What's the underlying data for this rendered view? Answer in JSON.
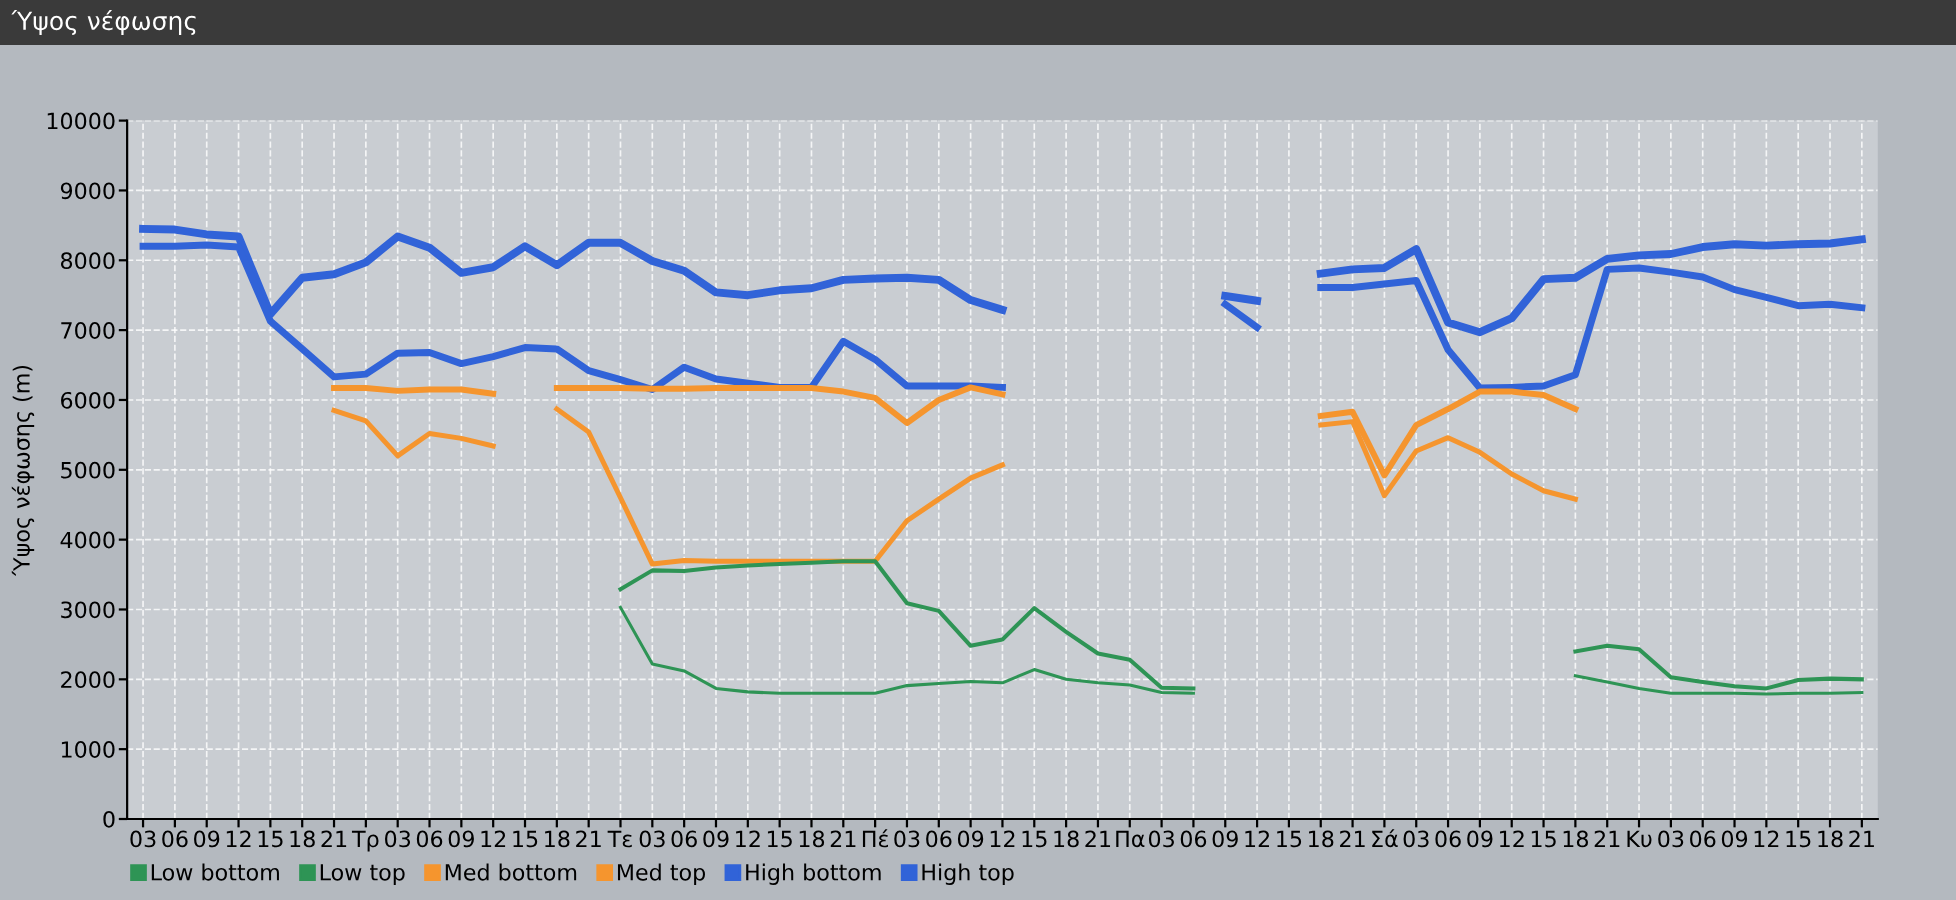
{
  "chart_data": {
    "type": "line",
    "title": "Ύψος νέφωσης",
    "ylabel": "Ύψος νέφωσης (m)",
    "categories": [
      "03",
      "06",
      "09",
      "12",
      "15",
      "18",
      "21",
      "Τρ",
      "03",
      "06",
      "09",
      "12",
      "15",
      "18",
      "21",
      "Τε",
      "03",
      "06",
      "09",
      "12",
      "15",
      "18",
      "21",
      "Πέ",
      "03",
      "06",
      "09",
      "12",
      "15",
      "18",
      "21",
      "Πα",
      "03",
      "06",
      "09",
      "12",
      "15",
      "18",
      "21",
      "Σά",
      "03",
      "06",
      "09",
      "12",
      "15",
      "18",
      "21",
      "Κυ",
      "03",
      "06",
      "09",
      "12",
      "15",
      "18",
      "21"
    ],
    "ylim": [
      0,
      10000
    ],
    "yticks": [
      0,
      1000,
      2000,
      3000,
      4000,
      5000,
      6000,
      7000,
      8000,
      9000,
      10000
    ],
    "grid": true,
    "legend": "bottom",
    "series": [
      {
        "name": "Low bottom",
        "color": "#2e9455",
        "values": [
          null,
          null,
          null,
          null,
          null,
          null,
          null,
          null,
          null,
          null,
          null,
          null,
          null,
          null,
          null,
          3030,
          2220,
          2120,
          1870,
          1820,
          1800,
          1800,
          1800,
          1800,
          1910,
          1940,
          1970,
          1950,
          2140,
          2000,
          1950,
          1920,
          1810,
          1800,
          null,
          null,
          null,
          null,
          null,
          null,
          null,
          null,
          null,
          null,
          null,
          2050,
          1960,
          1870,
          1800,
          1800,
          1800,
          1790,
          1800,
          1800,
          1810
        ]
      },
      {
        "name": "Low top",
        "color": "#2e9455",
        "values": [
          null,
          null,
          null,
          null,
          null,
          null,
          null,
          null,
          null,
          null,
          null,
          null,
          null,
          null,
          null,
          3290,
          3560,
          3550,
          3600,
          3630,
          3650,
          3670,
          3690,
          3690,
          3090,
          2980,
          2480,
          2570,
          3020,
          2680,
          2370,
          2280,
          1880,
          1870,
          null,
          null,
          null,
          null,
          null,
          null,
          null,
          null,
          null,
          null,
          null,
          2400,
          2480,
          2430,
          2030,
          1960,
          1900,
          1870,
          1990,
          2010,
          2000
        ]
      },
      {
        "name": "Med bottom",
        "color": "#f5952e",
        "values": [
          null,
          null,
          null,
          null,
          null,
          null,
          5850,
          5700,
          5200,
          5520,
          5450,
          5340,
          null,
          5870,
          5540,
          4600,
          3650,
          3700,
          3690,
          3690,
          3690,
          3690,
          3690,
          3690,
          4270,
          4580,
          4880,
          5070,
          null,
          null,
          null,
          null,
          null,
          null,
          null,
          null,
          null,
          5640,
          5690,
          4630,
          5270,
          5460,
          5250,
          4940,
          4700,
          4580,
          null,
          null,
          null,
          null,
          null,
          null,
          null,
          null,
          null
        ]
      },
      {
        "name": "Med top",
        "color": "#f5952e",
        "values": [
          null,
          null,
          null,
          null,
          null,
          null,
          6170,
          6170,
          6130,
          6150,
          6150,
          6090,
          null,
          6170,
          6170,
          6170,
          6160,
          6160,
          6170,
          6170,
          6170,
          6170,
          6120,
          6030,
          5670,
          6000,
          6180,
          6080,
          null,
          null,
          null,
          null,
          null,
          null,
          null,
          null,
          null,
          5770,
          5830,
          4920,
          5640,
          5870,
          6120,
          6120,
          6070,
          5870,
          null,
          null,
          null,
          null,
          null,
          null,
          null,
          null,
          null
        ]
      },
      {
        "name": "High bottom",
        "color": "#3163d8",
        "values": [
          8200,
          8200,
          8220,
          8190,
          7130,
          6730,
          6330,
          6370,
          6670,
          6680,
          6520,
          6620,
          6750,
          6730,
          6420,
          6290,
          6150,
          6470,
          6300,
          6240,
          6180,
          6180,
          6840,
          6580,
          6200,
          6200,
          6200,
          6180,
          null,
          null,
          null,
          null,
          null,
          null,
          7370,
          7040,
          null,
          7610,
          7610,
          7660,
          7710,
          6720,
          6170,
          6180,
          6200,
          6360,
          7870,
          7890,
          7830,
          7760,
          7580,
          7470,
          7350,
          7370,
          7320
        ]
      },
      {
        "name": "High top",
        "color": "#3163d8",
        "values": [
          8450,
          8440,
          8370,
          8340,
          7230,
          7750,
          7800,
          7970,
          8340,
          8180,
          7820,
          7900,
          8200,
          7930,
          8250,
          8250,
          7990,
          7850,
          7540,
          7500,
          7570,
          7600,
          7720,
          7740,
          7750,
          7720,
          7430,
          7290,
          null,
          null,
          null,
          null,
          null,
          null,
          7490,
          7420,
          null,
          7810,
          7870,
          7890,
          8160,
          7110,
          6970,
          7170,
          7730,
          7750,
          8020,
          8070,
          8090,
          8190,
          8230,
          8210,
          8230,
          8240,
          8300
        ]
      }
    ]
  }
}
